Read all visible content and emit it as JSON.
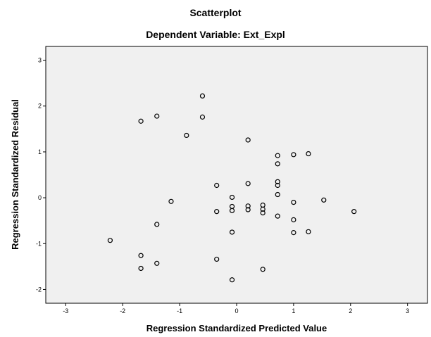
{
  "chart_data": {
    "type": "scatter",
    "title": "Scatterplot",
    "subtitle": "Dependent Variable: Ext_Expl",
    "xlabel": "Regression Standardized Predicted Value",
    "ylabel": "Regression Standardized Residual",
    "xlim": [
      -3.35,
      3.35
    ],
    "ylim": [
      -2.3,
      3.3
    ],
    "xticks": [
      -3,
      -2,
      -1,
      0,
      1,
      2,
      3
    ],
    "yticks": [
      -2,
      -1,
      0,
      1,
      2,
      3
    ],
    "grid": false,
    "colors": {
      "plot_background": "#f0f0f0",
      "marker_stroke": "#000000"
    },
    "points": [
      {
        "x": -0.6,
        "y": 2.22
      },
      {
        "x": -1.4,
        "y": 1.78
      },
      {
        "x": -1.68,
        "y": 1.67
      },
      {
        "x": -0.6,
        "y": 1.76
      },
      {
        "x": -0.88,
        "y": 1.36
      },
      {
        "x": 0.2,
        "y": 1.26
      },
      {
        "x": 0.72,
        "y": 0.92
      },
      {
        "x": 1.0,
        "y": 0.94
      },
      {
        "x": 1.26,
        "y": 0.96
      },
      {
        "x": 0.72,
        "y": 0.74
      },
      {
        "x": 0.72,
        "y": 0.35
      },
      {
        "x": 0.72,
        "y": 0.27
      },
      {
        "x": -0.35,
        "y": 0.27
      },
      {
        "x": 0.2,
        "y": 0.31
      },
      {
        "x": 0.72,
        "y": 0.07
      },
      {
        "x": -0.08,
        "y": 0.01
      },
      {
        "x": -1.15,
        "y": -0.08
      },
      {
        "x": 1.0,
        "y": -0.1
      },
      {
        "x": 1.53,
        "y": -0.05
      },
      {
        "x": -0.08,
        "y": -0.19
      },
      {
        "x": 0.2,
        "y": -0.18
      },
      {
        "x": 0.46,
        "y": -0.16
      },
      {
        "x": -0.08,
        "y": -0.28
      },
      {
        "x": 0.2,
        "y": -0.26
      },
      {
        "x": 0.46,
        "y": -0.25
      },
      {
        "x": -0.35,
        "y": -0.3
      },
      {
        "x": 0.46,
        "y": -0.33
      },
      {
        "x": 2.06,
        "y": -0.3
      },
      {
        "x": 0.72,
        "y": -0.4
      },
      {
        "x": 1.0,
        "y": -0.48
      },
      {
        "x": -1.4,
        "y": -0.58
      },
      {
        "x": -0.08,
        "y": -0.75
      },
      {
        "x": 1.0,
        "y": -0.76
      },
      {
        "x": 1.26,
        "y": -0.74
      },
      {
        "x": -2.22,
        "y": -0.93
      },
      {
        "x": -1.68,
        "y": -1.26
      },
      {
        "x": -0.35,
        "y": -1.34
      },
      {
        "x": -1.4,
        "y": -1.43
      },
      {
        "x": -1.68,
        "y": -1.54
      },
      {
        "x": 0.46,
        "y": -1.56
      },
      {
        "x": -0.08,
        "y": -1.79
      }
    ]
  }
}
